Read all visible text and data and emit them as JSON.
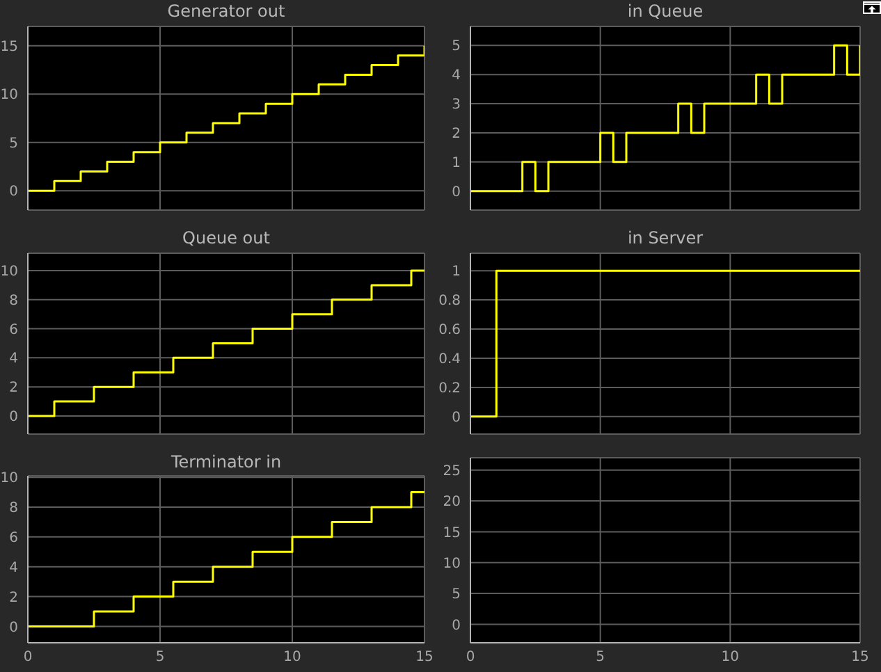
{
  "chart_data": [
    {
      "type": "step",
      "title": "Generator out",
      "series": [
        {
          "color": "#ffff00",
          "x": [
            0,
            1,
            2,
            3,
            4,
            5,
            6,
            7,
            8,
            9,
            10,
            11,
            12,
            13,
            14,
            15
          ],
          "values": [
            0,
            1,
            2,
            3,
            4,
            5,
            6,
            7,
            8,
            9,
            10,
            11,
            12,
            13,
            14,
            15
          ]
        }
      ],
      "xlim": [
        0,
        15
      ],
      "xticks": [
        0,
        5,
        10,
        15
      ],
      "ylim": [
        -2,
        17
      ],
      "yticks": [
        0,
        5,
        10,
        15
      ],
      "grid": true,
      "tick_labels": "y"
    },
    {
      "type": "step",
      "title": "in Queue",
      "series": [
        {
          "color": "#ffff00",
          "x": [
            0,
            2,
            2.5,
            3,
            5,
            5.5,
            6,
            8,
            8.5,
            9,
            11,
            11.5,
            12,
            14,
            14.5,
            15
          ],
          "values": [
            0,
            1,
            0,
            1,
            2,
            1,
            2,
            3,
            2,
            3,
            4,
            3,
            4,
            5,
            4,
            5
          ]
        }
      ],
      "xlim": [
        0,
        15
      ],
      "xticks": [
        0,
        5,
        10,
        15
      ],
      "ylim": [
        -0.65,
        5.65
      ],
      "yticks": [
        0,
        1,
        2,
        3,
        4,
        5
      ],
      "grid": true,
      "tick_labels": "y"
    },
    {
      "type": "step",
      "title": "Queue out",
      "series": [
        {
          "color": "#ffff00",
          "x": [
            0,
            1,
            2.5,
            4,
            5.5,
            7,
            8.5,
            10,
            11.5,
            13,
            14.5,
            15
          ],
          "values": [
            0,
            1,
            2,
            3,
            4,
            5,
            6,
            7,
            8,
            9,
            10,
            10
          ]
        }
      ],
      "xlim": [
        0,
        15
      ],
      "xticks": [
        0,
        5,
        10,
        15
      ],
      "ylim": [
        -1.25,
        11.2
      ],
      "yticks": [
        0,
        2,
        4,
        6,
        8,
        10
      ],
      "grid": true,
      "tick_labels": "y"
    },
    {
      "type": "step",
      "title": "in Server",
      "series": [
        {
          "color": "#ffff00",
          "x": [
            0,
            1,
            15
          ],
          "values": [
            0,
            1,
            1
          ]
        }
      ],
      "xlim": [
        0,
        15
      ],
      "xticks": [
        0,
        5,
        10,
        15
      ],
      "ylim": [
        -0.12,
        1.12
      ],
      "yticks": [
        0,
        0.2,
        0.4,
        0.6,
        0.8,
        1
      ],
      "grid": true,
      "tick_labels": "y"
    },
    {
      "type": "step",
      "title": "Terminator in",
      "series": [
        {
          "color": "#ffff00",
          "x": [
            0,
            2.5,
            4,
            5.5,
            7,
            8.5,
            10,
            11.5,
            13,
            14.5,
            15
          ],
          "values": [
            0,
            1,
            2,
            3,
            4,
            5,
            6,
            7,
            8,
            9,
            9
          ]
        }
      ],
      "xlim": [
        0,
        15
      ],
      "xticks": [
        0,
        5,
        10,
        15
      ],
      "ylim": [
        -1.1,
        10.1
      ],
      "yticks": [
        0,
        2,
        4,
        6,
        8,
        10
      ],
      "grid": true
    },
    {
      "type": "step",
      "xlim": [
        0,
        15
      ],
      "xticks": [
        0,
        5,
        10,
        15
      ],
      "ylim": [
        -3,
        27
      ],
      "yticks": [
        0,
        5,
        10,
        15,
        20,
        25
      ],
      "grid": true
    }
  ]
}
